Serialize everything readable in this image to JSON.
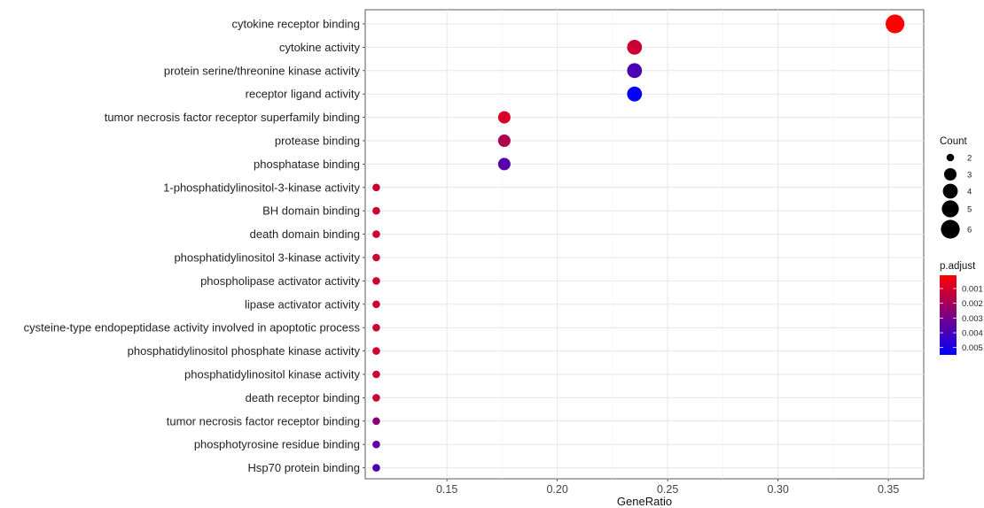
{
  "chart_data": {
    "type": "scatter",
    "xlabel": "GeneRatio",
    "ylabel": "",
    "xlim": [
      0.113,
      0.366
    ],
    "x_ticks": [
      0.15,
      0.2,
      0.25,
      0.3,
      0.35
    ],
    "x_tick_labels": [
      "0.15",
      "0.20",
      "0.25",
      "0.30",
      "0.35"
    ],
    "grid": true,
    "categories": [
      "cytokine receptor binding",
      "cytokine activity",
      "protein serine/threonine kinase activity",
      "receptor ligand activity",
      "tumor necrosis factor receptor superfamily binding",
      "protease binding",
      "phosphatase binding",
      "1-phosphatidylinositol-3-kinase activity",
      "BH domain binding",
      "death domain binding",
      "phosphatidylinositol 3-kinase activity",
      "phospholipase activator activity",
      "lipase activator activity",
      "cysteine-type endopeptidase activity involved in apoptotic process",
      "phosphatidylinositol phosphate kinase activity",
      "phosphatidylinositol kinase activity",
      "death receptor binding",
      "tumor necrosis factor receptor binding",
      "phosphotyrosine residue binding",
      "Hsp70 protein binding"
    ],
    "points": [
      {
        "category": "cytokine receptor binding",
        "x": 0.353,
        "count": 6,
        "p_adjust": 0.0001
      },
      {
        "category": "cytokine activity",
        "x": 0.235,
        "count": 4,
        "p_adjust": 0.0012
      },
      {
        "category": "protein serine/threonine kinase activity",
        "x": 0.235,
        "count": 4,
        "p_adjust": 0.0039
      },
      {
        "category": "receptor ligand activity",
        "x": 0.235,
        "count": 4,
        "p_adjust": 0.0054
      },
      {
        "category": "tumor necrosis factor receptor superfamily binding",
        "x": 0.176,
        "count": 3,
        "p_adjust": 0.0009
      },
      {
        "category": "protease binding",
        "x": 0.176,
        "count": 3,
        "p_adjust": 0.0018
      },
      {
        "category": "phosphatase binding",
        "x": 0.176,
        "count": 3,
        "p_adjust": 0.0037
      },
      {
        "category": "1-phosphatidylinositol-3-kinase activity",
        "x": 0.118,
        "count": 2,
        "p_adjust": 0.0012
      },
      {
        "category": "BH domain binding",
        "x": 0.118,
        "count": 2,
        "p_adjust": 0.0012
      },
      {
        "category": "death domain binding",
        "x": 0.118,
        "count": 2,
        "p_adjust": 0.0012
      },
      {
        "category": "phosphatidylinositol 3-kinase activity",
        "x": 0.118,
        "count": 2,
        "p_adjust": 0.0012
      },
      {
        "category": "phospholipase activator activity",
        "x": 0.118,
        "count": 2,
        "p_adjust": 0.0012
      },
      {
        "category": "lipase activator activity",
        "x": 0.118,
        "count": 2,
        "p_adjust": 0.0012
      },
      {
        "category": "cysteine-type endopeptidase activity involved in apoptotic process",
        "x": 0.118,
        "count": 2,
        "p_adjust": 0.0012
      },
      {
        "category": "phosphatidylinositol phosphate kinase activity",
        "x": 0.118,
        "count": 2,
        "p_adjust": 0.0012
      },
      {
        "category": "phosphatidylinositol kinase activity",
        "x": 0.118,
        "count": 2,
        "p_adjust": 0.0012
      },
      {
        "category": "death receptor binding",
        "x": 0.118,
        "count": 2,
        "p_adjust": 0.0012
      },
      {
        "category": "tumor necrosis factor receptor binding",
        "x": 0.118,
        "count": 2,
        "p_adjust": 0.0026
      },
      {
        "category": "phosphotyrosine residue binding",
        "x": 0.118,
        "count": 2,
        "p_adjust": 0.0036
      },
      {
        "category": "Hsp70 protein binding",
        "x": 0.118,
        "count": 2,
        "p_adjust": 0.0039
      }
    ],
    "size_legend": {
      "title": "Count",
      "values": [
        2,
        3,
        4,
        5,
        6
      ],
      "labels": [
        "2",
        "3",
        "4",
        "5",
        "6"
      ]
    },
    "color_legend": {
      "title": "p.adjust",
      "range": [
        0.0001,
        0.0055
      ],
      "ticks": [
        0.001,
        0.002,
        0.003,
        0.004,
        0.005
      ],
      "labels": [
        "0.001",
        "0.002",
        "0.003",
        "0.004",
        "0.005"
      ],
      "color_low": "#ff0000",
      "color_high": "#0000ff"
    }
  }
}
